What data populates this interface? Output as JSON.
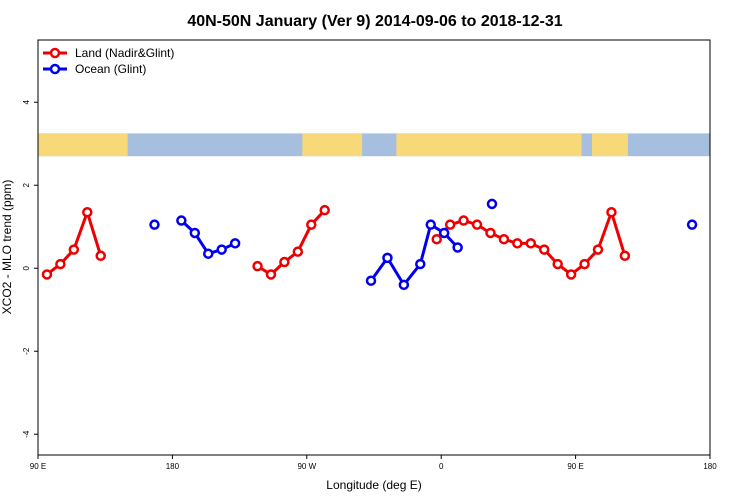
{
  "chart_data": {
    "type": "line",
    "title": "40N-50N January (Ver 9)   2014-09-06 to 2018-12-31",
    "xlabel": "Longitude (deg E)",
    "ylabel": "XCO2 - MLO trend (ppm)",
    "xlim": [
      90,
      540
    ],
    "ylim": [
      -4.5,
      5.5
    ],
    "x_ticks": [
      {
        "value": 90,
        "label": "90 E"
      },
      {
        "value": 180,
        "label": "180"
      },
      {
        "value": 270,
        "label": "90 W"
      },
      {
        "value": 360,
        "label": "0"
      },
      {
        "value": 450,
        "label": "90 E"
      },
      {
        "value": 540,
        "label": "180"
      }
    ],
    "y_ticks": [
      {
        "value": 4,
        "label": "4"
      },
      {
        "value": 2,
        "label": "2"
      },
      {
        "value": 0,
        "label": "0"
      },
      {
        "value": -2,
        "label": "-2"
      },
      {
        "value": -4,
        "label": "-4"
      }
    ],
    "map_band": {
      "y_range": [
        2.7,
        3.25
      ],
      "land_color": "#f7d97a",
      "ocean_color": "#a7bfde"
    },
    "legend": {
      "position": "top-left"
    },
    "series": [
      {
        "name": "Land (Nadir&Glint)",
        "color": "#ee0000",
        "segments": [
          [
            [
              96,
              -0.15
            ],
            [
              105,
              0.1
            ],
            [
              114,
              0.45
            ],
            [
              123,
              1.35
            ],
            [
              132,
              0.3
            ]
          ],
          [
            [
              237,
              0.05
            ],
            [
              246,
              -0.15
            ],
            [
              255,
              0.15
            ],
            [
              264,
              0.4
            ],
            [
              273,
              1.05
            ],
            [
              282,
              1.4
            ]
          ],
          [
            [
              357,
              0.7
            ],
            [
              366,
              1.05
            ],
            [
              375,
              1.15
            ],
            [
              384,
              1.05
            ],
            [
              393,
              0.85
            ],
            [
              402,
              0.7
            ],
            [
              411,
              0.6
            ],
            [
              420,
              0.6
            ],
            [
              429,
              0.45
            ],
            [
              438,
              0.1
            ],
            [
              447,
              -0.15
            ],
            [
              456,
              0.1
            ],
            [
              465,
              0.45
            ],
            [
              474,
              1.35
            ],
            [
              483,
              0.3
            ]
          ]
        ]
      },
      {
        "name": "Ocean (Glint)",
        "color": "#0000ee",
        "segments": [
          [
            [
              168,
              1.05
            ]
          ],
          [
            [
              186,
              1.15
            ],
            [
              195,
              0.85
            ],
            [
              204,
              0.35
            ],
            [
              213,
              0.45
            ],
            [
              222,
              0.6
            ]
          ],
          [
            [
              313,
              -0.3
            ],
            [
              324,
              0.25
            ],
            [
              335,
              -0.4
            ],
            [
              346,
              0.1
            ],
            [
              353,
              1.05
            ],
            [
              362,
              0.85
            ],
            [
              371,
              0.5
            ]
          ],
          [
            [
              394,
              1.55
            ]
          ],
          [
            [
              528,
              1.05
            ]
          ]
        ]
      }
    ]
  }
}
